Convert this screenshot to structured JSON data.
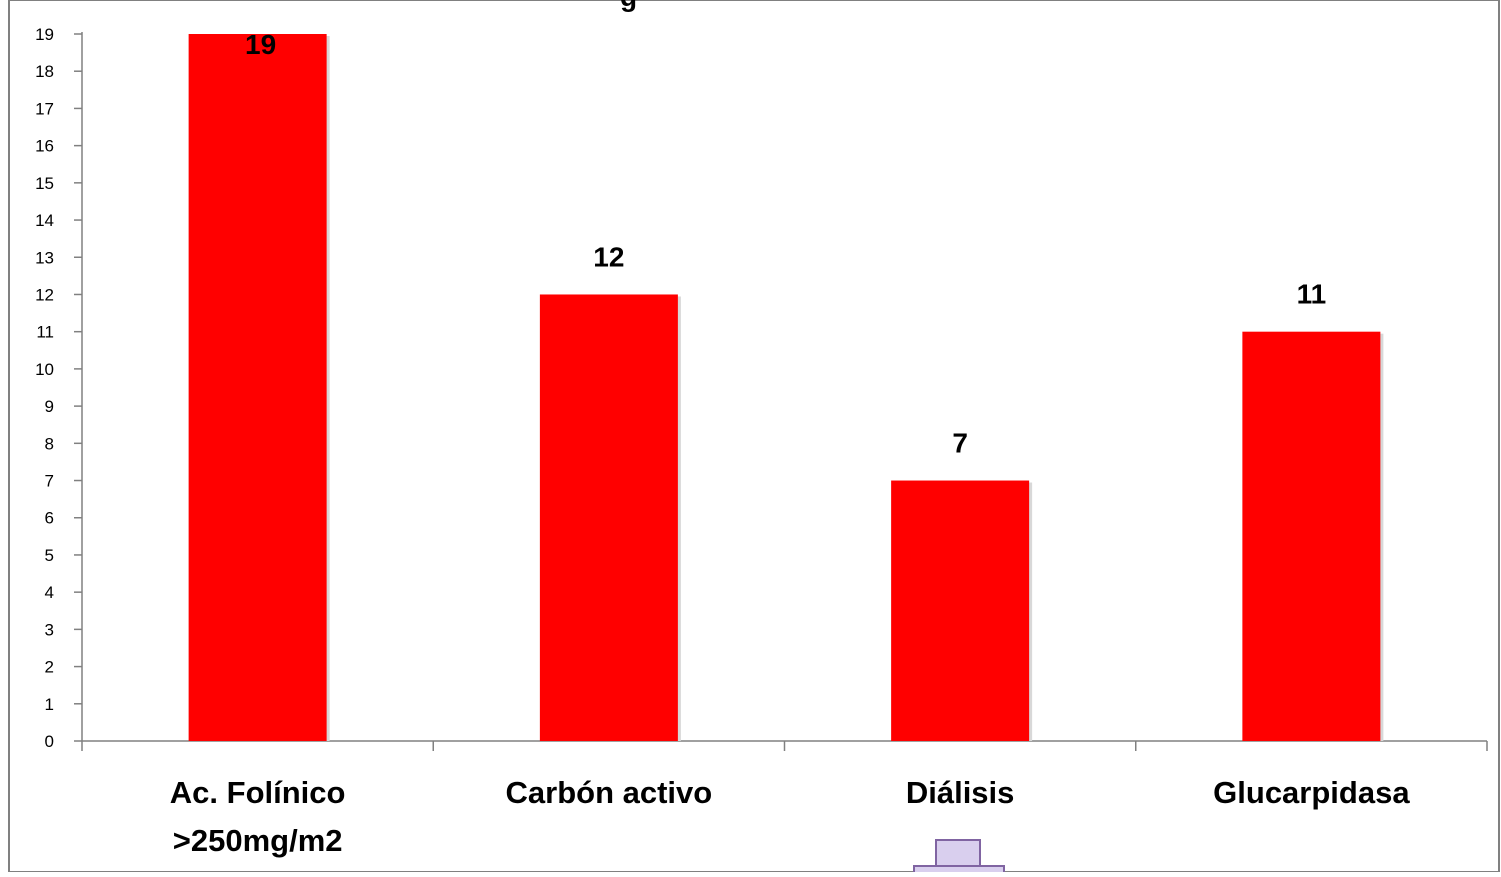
{
  "chart_data": {
    "type": "bar",
    "categories": [
      [
        "Ac. Folínico",
        ">250mg/m2"
      ],
      [
        "Carbón activo"
      ],
      [
        "Diálisis"
      ],
      [
        "Glucarpidasa"
      ]
    ],
    "values": [
      19,
      12,
      7,
      11
    ],
    "data_labels": [
      "19",
      "12",
      "7",
      "11"
    ],
    "ylim": [
      0,
      19
    ],
    "yticks": [
      0,
      1,
      2,
      3,
      4,
      5,
      6,
      7,
      8,
      9,
      10,
      11,
      12,
      13,
      14,
      15,
      16,
      17,
      18,
      19
    ],
    "grid": false,
    "legend": "none",
    "colors": {
      "bar": "#ff0000",
      "axis": "#808080",
      "frame": "#808080",
      "text": "#000000",
      "arrow_fill": "#d9cfee",
      "arrow_stroke": "#8064a2"
    },
    "title": "",
    "xlabel": "",
    "ylabel": ""
  }
}
